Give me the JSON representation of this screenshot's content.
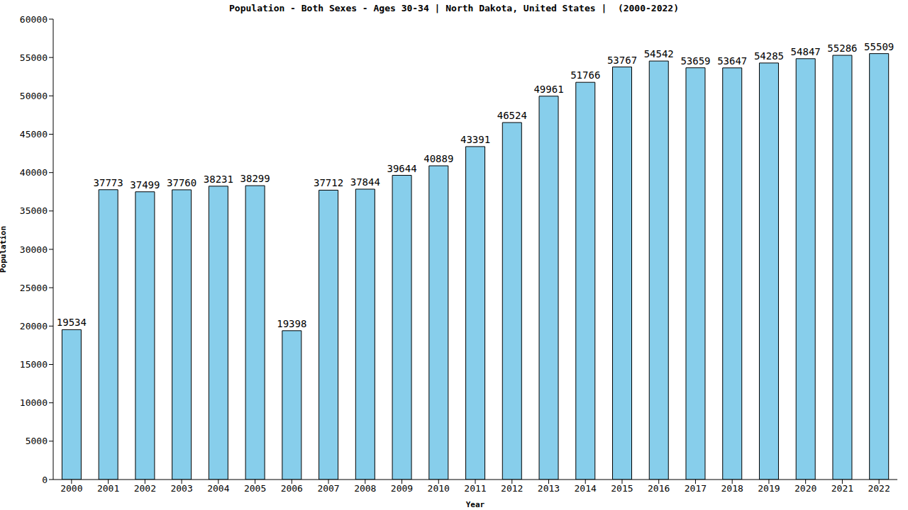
{
  "chart_data": {
    "type": "bar",
    "title": "Population - Both Sexes - Ages 30-34 | North Dakota, United States |  (2000-2022)",
    "x_label": "Year",
    "y_label": "Population",
    "categories": [
      "2000",
      "2001",
      "2002",
      "2003",
      "2004",
      "2005",
      "2006",
      "2007",
      "2008",
      "2009",
      "2010",
      "2011",
      "2012",
      "2013",
      "2014",
      "2015",
      "2016",
      "2017",
      "2018",
      "2019",
      "2020",
      "2021",
      "2022"
    ],
    "values": [
      19534,
      37773,
      37499,
      37760,
      38231,
      38299,
      19398,
      37712,
      37844,
      39644,
      40889,
      43391,
      46524,
      49961,
      51766,
      53767,
      54542,
      53659,
      53647,
      54285,
      54847,
      55286,
      55509
    ],
    "color": "#87ceeb",
    "ylim": [
      0,
      60000
    ],
    "yticks": [
      0,
      5000,
      10000,
      15000,
      20000,
      25000,
      30000,
      35000,
      40000,
      45000,
      50000,
      55000,
      60000
    ],
    "grid": false,
    "data_labels": true
  }
}
